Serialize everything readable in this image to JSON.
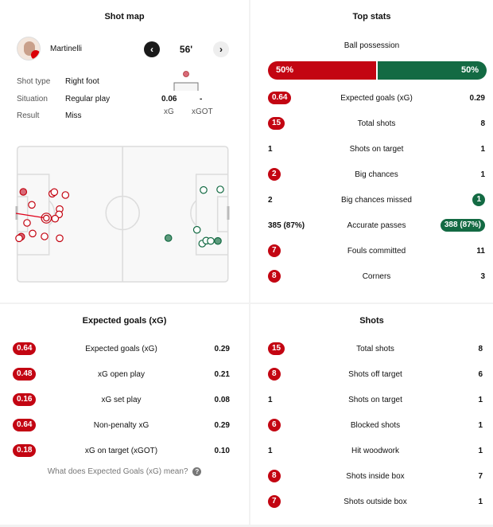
{
  "colors": {
    "home": "#c30512",
    "away": "#136a43"
  },
  "shot_map": {
    "title": "Shot map",
    "player": "Martinelli",
    "minute": "56'",
    "prev_icon": "chevron-left-icon",
    "next_icon": "chevron-right-icon",
    "details": [
      {
        "label": "Shot type",
        "value": "Right foot"
      },
      {
        "label": "Situation",
        "value": "Regular play"
      },
      {
        "label": "Result",
        "value": "Miss"
      }
    ],
    "xg": {
      "value": "0.06",
      "label": "xG"
    },
    "xgot": {
      "value": "-",
      "label": "xGOT"
    }
  },
  "top_stats": {
    "title": "Top stats",
    "possession": {
      "label": "Ball possession",
      "home": "50%",
      "away": "50%",
      "home_pct": 50
    },
    "rows": [
      {
        "label": "Expected goals (xG)",
        "home": "0.64",
        "away": "0.29",
        "hl": "home"
      },
      {
        "label": "Total shots",
        "home": "15",
        "away": "8",
        "hl": "home"
      },
      {
        "label": "Shots on target",
        "home": "1",
        "away": "1",
        "hl": ""
      },
      {
        "label": "Big chances",
        "home": "2",
        "away": "1",
        "hl": "home"
      },
      {
        "label": "Big chances missed",
        "home": "2",
        "away": "1",
        "hl": "away"
      },
      {
        "label": "Accurate passes",
        "home": "385 (87%)",
        "away": "388 (87%)",
        "hl": "away"
      },
      {
        "label": "Fouls committed",
        "home": "7",
        "away": "11",
        "hl": "home"
      },
      {
        "label": "Corners",
        "home": "8",
        "away": "3",
        "hl": "home"
      }
    ]
  },
  "xg_section": {
    "title": "Expected goals (xG)",
    "rows": [
      {
        "label": "Expected goals (xG)",
        "home": "0.64",
        "away": "0.29",
        "hl": "home"
      },
      {
        "label": "xG open play",
        "home": "0.48",
        "away": "0.21",
        "hl": "home"
      },
      {
        "label": "xG set play",
        "home": "0.16",
        "away": "0.08",
        "hl": "home"
      },
      {
        "label": "Non-penalty xG",
        "home": "0.64",
        "away": "0.29",
        "hl": "home"
      },
      {
        "label": "xG on target (xGOT)",
        "home": "0.18",
        "away": "0.10",
        "hl": "home"
      }
    ],
    "help_link": "What does Expected Goals (xG) mean?",
    "help_icon": "question-icon"
  },
  "shots_section": {
    "title": "Shots",
    "rows": [
      {
        "label": "Total shots",
        "home": "15",
        "away": "8",
        "hl": "home"
      },
      {
        "label": "Shots off target",
        "home": "8",
        "away": "6",
        "hl": "home"
      },
      {
        "label": "Shots on target",
        "home": "1",
        "away": "1",
        "hl": ""
      },
      {
        "label": "Blocked shots",
        "home": "6",
        "away": "1",
        "hl": "home"
      },
      {
        "label": "Hit woodwork",
        "home": "1",
        "away": "1",
        "hl": ""
      },
      {
        "label": "Shots inside box",
        "home": "8",
        "away": "7",
        "hl": "home"
      },
      {
        "label": "Shots outside box",
        "home": "7",
        "away": "1",
        "hl": "home"
      }
    ]
  }
}
